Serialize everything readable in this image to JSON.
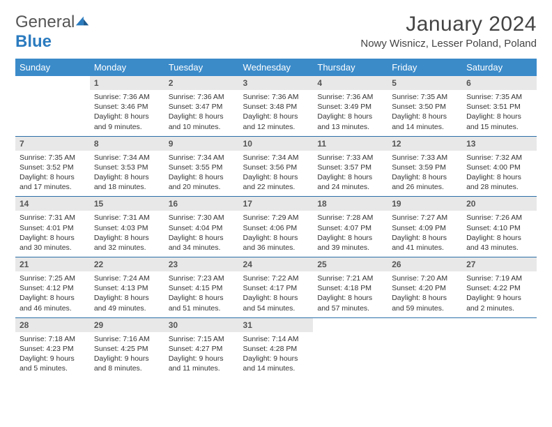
{
  "brand": {
    "general": "General",
    "blue": "Blue"
  },
  "title": "January 2024",
  "location": "Nowy Wisnicz, Lesser Poland, Poland",
  "colors": {
    "header_bg": "#3b8bc9",
    "header_text": "#ffffff",
    "daynum_bg": "#e8e8e8",
    "row_border": "#2b6fa8",
    "logo_blue": "#2b7bbf"
  },
  "day_headers": [
    "Sunday",
    "Monday",
    "Tuesday",
    "Wednesday",
    "Thursday",
    "Friday",
    "Saturday"
  ],
  "weeks": [
    [
      {
        "num": "",
        "sunrise": "",
        "sunset": "",
        "daylight1": "",
        "daylight2": "",
        "empty": true
      },
      {
        "num": "1",
        "sunrise": "Sunrise: 7:36 AM",
        "sunset": "Sunset: 3:46 PM",
        "daylight1": "Daylight: 8 hours",
        "daylight2": "and 9 minutes."
      },
      {
        "num": "2",
        "sunrise": "Sunrise: 7:36 AM",
        "sunset": "Sunset: 3:47 PM",
        "daylight1": "Daylight: 8 hours",
        "daylight2": "and 10 minutes."
      },
      {
        "num": "3",
        "sunrise": "Sunrise: 7:36 AM",
        "sunset": "Sunset: 3:48 PM",
        "daylight1": "Daylight: 8 hours",
        "daylight2": "and 12 minutes."
      },
      {
        "num": "4",
        "sunrise": "Sunrise: 7:36 AM",
        "sunset": "Sunset: 3:49 PM",
        "daylight1": "Daylight: 8 hours",
        "daylight2": "and 13 minutes."
      },
      {
        "num": "5",
        "sunrise": "Sunrise: 7:35 AM",
        "sunset": "Sunset: 3:50 PM",
        "daylight1": "Daylight: 8 hours",
        "daylight2": "and 14 minutes."
      },
      {
        "num": "6",
        "sunrise": "Sunrise: 7:35 AM",
        "sunset": "Sunset: 3:51 PM",
        "daylight1": "Daylight: 8 hours",
        "daylight2": "and 15 minutes."
      }
    ],
    [
      {
        "num": "7",
        "sunrise": "Sunrise: 7:35 AM",
        "sunset": "Sunset: 3:52 PM",
        "daylight1": "Daylight: 8 hours",
        "daylight2": "and 17 minutes."
      },
      {
        "num": "8",
        "sunrise": "Sunrise: 7:34 AM",
        "sunset": "Sunset: 3:53 PM",
        "daylight1": "Daylight: 8 hours",
        "daylight2": "and 18 minutes."
      },
      {
        "num": "9",
        "sunrise": "Sunrise: 7:34 AM",
        "sunset": "Sunset: 3:55 PM",
        "daylight1": "Daylight: 8 hours",
        "daylight2": "and 20 minutes."
      },
      {
        "num": "10",
        "sunrise": "Sunrise: 7:34 AM",
        "sunset": "Sunset: 3:56 PM",
        "daylight1": "Daylight: 8 hours",
        "daylight2": "and 22 minutes."
      },
      {
        "num": "11",
        "sunrise": "Sunrise: 7:33 AM",
        "sunset": "Sunset: 3:57 PM",
        "daylight1": "Daylight: 8 hours",
        "daylight2": "and 24 minutes."
      },
      {
        "num": "12",
        "sunrise": "Sunrise: 7:33 AM",
        "sunset": "Sunset: 3:59 PM",
        "daylight1": "Daylight: 8 hours",
        "daylight2": "and 26 minutes."
      },
      {
        "num": "13",
        "sunrise": "Sunrise: 7:32 AM",
        "sunset": "Sunset: 4:00 PM",
        "daylight1": "Daylight: 8 hours",
        "daylight2": "and 28 minutes."
      }
    ],
    [
      {
        "num": "14",
        "sunrise": "Sunrise: 7:31 AM",
        "sunset": "Sunset: 4:01 PM",
        "daylight1": "Daylight: 8 hours",
        "daylight2": "and 30 minutes."
      },
      {
        "num": "15",
        "sunrise": "Sunrise: 7:31 AM",
        "sunset": "Sunset: 4:03 PM",
        "daylight1": "Daylight: 8 hours",
        "daylight2": "and 32 minutes."
      },
      {
        "num": "16",
        "sunrise": "Sunrise: 7:30 AM",
        "sunset": "Sunset: 4:04 PM",
        "daylight1": "Daylight: 8 hours",
        "daylight2": "and 34 minutes."
      },
      {
        "num": "17",
        "sunrise": "Sunrise: 7:29 AM",
        "sunset": "Sunset: 4:06 PM",
        "daylight1": "Daylight: 8 hours",
        "daylight2": "and 36 minutes."
      },
      {
        "num": "18",
        "sunrise": "Sunrise: 7:28 AM",
        "sunset": "Sunset: 4:07 PM",
        "daylight1": "Daylight: 8 hours",
        "daylight2": "and 39 minutes."
      },
      {
        "num": "19",
        "sunrise": "Sunrise: 7:27 AM",
        "sunset": "Sunset: 4:09 PM",
        "daylight1": "Daylight: 8 hours",
        "daylight2": "and 41 minutes."
      },
      {
        "num": "20",
        "sunrise": "Sunrise: 7:26 AM",
        "sunset": "Sunset: 4:10 PM",
        "daylight1": "Daylight: 8 hours",
        "daylight2": "and 43 minutes."
      }
    ],
    [
      {
        "num": "21",
        "sunrise": "Sunrise: 7:25 AM",
        "sunset": "Sunset: 4:12 PM",
        "daylight1": "Daylight: 8 hours",
        "daylight2": "and 46 minutes."
      },
      {
        "num": "22",
        "sunrise": "Sunrise: 7:24 AM",
        "sunset": "Sunset: 4:13 PM",
        "daylight1": "Daylight: 8 hours",
        "daylight2": "and 49 minutes."
      },
      {
        "num": "23",
        "sunrise": "Sunrise: 7:23 AM",
        "sunset": "Sunset: 4:15 PM",
        "daylight1": "Daylight: 8 hours",
        "daylight2": "and 51 minutes."
      },
      {
        "num": "24",
        "sunrise": "Sunrise: 7:22 AM",
        "sunset": "Sunset: 4:17 PM",
        "daylight1": "Daylight: 8 hours",
        "daylight2": "and 54 minutes."
      },
      {
        "num": "25",
        "sunrise": "Sunrise: 7:21 AM",
        "sunset": "Sunset: 4:18 PM",
        "daylight1": "Daylight: 8 hours",
        "daylight2": "and 57 minutes."
      },
      {
        "num": "26",
        "sunrise": "Sunrise: 7:20 AM",
        "sunset": "Sunset: 4:20 PM",
        "daylight1": "Daylight: 8 hours",
        "daylight2": "and 59 minutes."
      },
      {
        "num": "27",
        "sunrise": "Sunrise: 7:19 AM",
        "sunset": "Sunset: 4:22 PM",
        "daylight1": "Daylight: 9 hours",
        "daylight2": "and 2 minutes."
      }
    ],
    [
      {
        "num": "28",
        "sunrise": "Sunrise: 7:18 AM",
        "sunset": "Sunset: 4:23 PM",
        "daylight1": "Daylight: 9 hours",
        "daylight2": "and 5 minutes."
      },
      {
        "num": "29",
        "sunrise": "Sunrise: 7:16 AM",
        "sunset": "Sunset: 4:25 PM",
        "daylight1": "Daylight: 9 hours",
        "daylight2": "and 8 minutes."
      },
      {
        "num": "30",
        "sunrise": "Sunrise: 7:15 AM",
        "sunset": "Sunset: 4:27 PM",
        "daylight1": "Daylight: 9 hours",
        "daylight2": "and 11 minutes."
      },
      {
        "num": "31",
        "sunrise": "Sunrise: 7:14 AM",
        "sunset": "Sunset: 4:28 PM",
        "daylight1": "Daylight: 9 hours",
        "daylight2": "and 14 minutes."
      },
      {
        "num": "",
        "sunrise": "",
        "sunset": "",
        "daylight1": "",
        "daylight2": "",
        "empty": true
      },
      {
        "num": "",
        "sunrise": "",
        "sunset": "",
        "daylight1": "",
        "daylight2": "",
        "empty": true
      },
      {
        "num": "",
        "sunrise": "",
        "sunset": "",
        "daylight1": "",
        "daylight2": "",
        "empty": true
      }
    ]
  ]
}
